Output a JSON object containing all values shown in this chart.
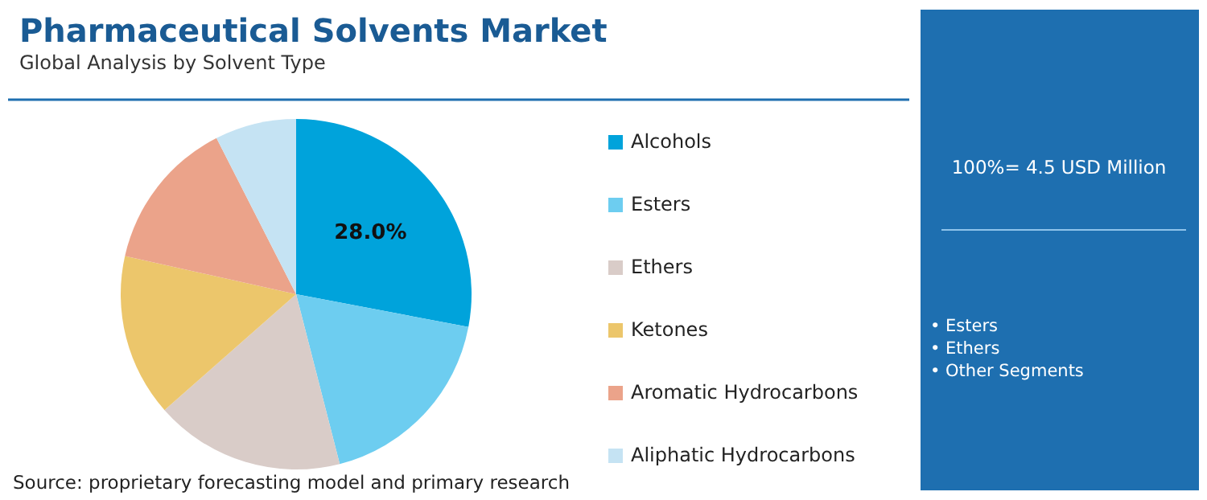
{
  "chart_data": {
    "type": "pie",
    "title": "Pharmaceutical Solvents Market",
    "subtitle": "Global Analysis by Solvent Type",
    "categories": [
      "Alcohols",
      "Esters",
      "Ethers",
      "Ketones",
      "Aromatic Hydrocarbons",
      "Aliphatic Hydrocarbons"
    ],
    "values": [
      28,
      18,
      17.5,
      15,
      14,
      7.5
    ],
    "colors": [
      "#00a3db",
      "#6dcdf0",
      "#d9ccc8",
      "#ecc66b",
      "#eba38a",
      "#c5e3f3"
    ],
    "value_labels": [
      "28.0%",
      null,
      null,
      null,
      null,
      null
    ],
    "legend": "right",
    "annotations": [
      "Source: proprietary forecasting model and primary research",
      "100%= 4.5 USD Million",
      "• Esters",
      "• Ethers",
      "• Other Segments"
    ]
  }
}
